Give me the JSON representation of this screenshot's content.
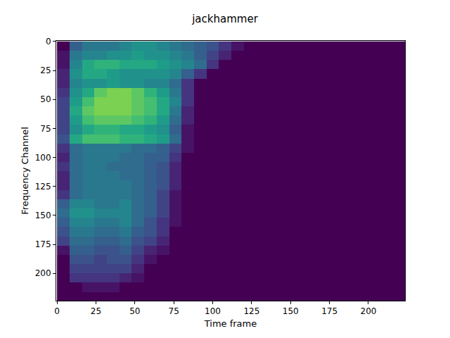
{
  "chart_data": {
    "type": "heatmap",
    "title": "jackhammer",
    "xlabel": "Time frame",
    "ylabel": "Frequency Channel",
    "color": "viridis",
    "xlim": [
      -0.5,
      223.5
    ],
    "ylim": [
      223.5,
      -0.5
    ],
    "xticks": [
      0,
      25,
      50,
      75,
      100,
      125,
      150,
      175,
      200
    ],
    "yticks": [
      0,
      25,
      50,
      75,
      100,
      125,
      150,
      175,
      200
    ],
    "zlim": [
      0,
      1
    ],
    "x": [
      4,
      12,
      20,
      28,
      36,
      44,
      52,
      60,
      68,
      76,
      84,
      92,
      100,
      108,
      116,
      124,
      132,
      140,
      148,
      156,
      164,
      172,
      180,
      188,
      196,
      204,
      212,
      220
    ],
    "y": [
      4,
      12,
      20,
      28,
      36,
      44,
      52,
      60,
      68,
      76,
      84,
      92,
      100,
      108,
      116,
      124,
      132,
      140,
      148,
      156,
      164,
      172,
      180,
      188,
      196,
      204,
      212,
      220
    ],
    "cells": [
      [
        0,
        0.3,
        0.4,
        0.4,
        0.4,
        0.45,
        0.5,
        0.5,
        0.45,
        0.4,
        0.35,
        0.3,
        0.25,
        0.15,
        0.05,
        0,
        0,
        0,
        0,
        0,
        0,
        0,
        0,
        0,
        0,
        0,
        0,
        0
      ],
      [
        0.05,
        0.4,
        0.45,
        0.45,
        0.5,
        0.5,
        0.55,
        0.5,
        0.5,
        0.45,
        0.4,
        0.3,
        0.2,
        0.1,
        0,
        0,
        0,
        0,
        0,
        0,
        0,
        0,
        0,
        0,
        0,
        0,
        0,
        0
      ],
      [
        0.05,
        0.45,
        0.6,
        0.65,
        0.65,
        0.6,
        0.6,
        0.6,
        0.55,
        0.5,
        0.45,
        0.35,
        0.15,
        0,
        0,
        0,
        0,
        0,
        0,
        0,
        0,
        0,
        0,
        0,
        0,
        0,
        0,
        0
      ],
      [
        0.1,
        0.5,
        0.6,
        0.6,
        0.55,
        0.5,
        0.5,
        0.5,
        0.5,
        0.45,
        0.3,
        0.15,
        0,
        0,
        0,
        0,
        0,
        0,
        0,
        0,
        0,
        0,
        0,
        0,
        0,
        0,
        0,
        0
      ],
      [
        0.1,
        0.45,
        0.5,
        0.5,
        0.55,
        0.5,
        0.5,
        0.45,
        0.45,
        0.35,
        0.15,
        0,
        0,
        0,
        0,
        0,
        0,
        0,
        0,
        0,
        0,
        0,
        0,
        0,
        0,
        0,
        0,
        0
      ],
      [
        0.15,
        0.5,
        0.6,
        0.75,
        0.8,
        0.8,
        0.75,
        0.65,
        0.55,
        0.4,
        0.15,
        0,
        0,
        0,
        0,
        0,
        0,
        0,
        0,
        0,
        0,
        0,
        0,
        0,
        0,
        0,
        0,
        0
      ],
      [
        0.2,
        0.55,
        0.7,
        0.8,
        0.8,
        0.8,
        0.75,
        0.7,
        0.6,
        0.45,
        0.15,
        0,
        0,
        0,
        0,
        0,
        0,
        0,
        0,
        0,
        0,
        0,
        0,
        0,
        0,
        0,
        0,
        0
      ],
      [
        0.2,
        0.6,
        0.75,
        0.8,
        0.8,
        0.8,
        0.75,
        0.7,
        0.6,
        0.4,
        0.1,
        0,
        0,
        0,
        0,
        0,
        0,
        0,
        0,
        0,
        0,
        0,
        0,
        0,
        0,
        0,
        0,
        0
      ],
      [
        0.2,
        0.55,
        0.7,
        0.75,
        0.75,
        0.75,
        0.7,
        0.65,
        0.55,
        0.35,
        0.1,
        0,
        0,
        0,
        0,
        0,
        0,
        0,
        0,
        0,
        0,
        0,
        0,
        0,
        0,
        0,
        0,
        0
      ],
      [
        0.2,
        0.5,
        0.6,
        0.65,
        0.65,
        0.6,
        0.6,
        0.55,
        0.5,
        0.3,
        0.05,
        0,
        0,
        0,
        0,
        0,
        0,
        0,
        0,
        0,
        0,
        0,
        0,
        0,
        0,
        0,
        0,
        0
      ],
      [
        0.25,
        0.6,
        0.7,
        0.7,
        0.7,
        0.65,
        0.65,
        0.6,
        0.55,
        0.35,
        0.05,
        0,
        0,
        0,
        0,
        0,
        0,
        0,
        0,
        0,
        0,
        0,
        0,
        0,
        0,
        0,
        0,
        0
      ],
      [
        0.15,
        0.35,
        0.4,
        0.4,
        0.4,
        0.4,
        0.35,
        0.35,
        0.3,
        0.2,
        0.05,
        0,
        0,
        0,
        0,
        0,
        0,
        0,
        0,
        0,
        0,
        0,
        0,
        0,
        0,
        0,
        0,
        0
      ],
      [
        0.1,
        0.35,
        0.4,
        0.4,
        0.4,
        0.35,
        0.35,
        0.3,
        0.3,
        0.15,
        0,
        0,
        0,
        0,
        0,
        0,
        0,
        0,
        0,
        0,
        0,
        0,
        0,
        0,
        0,
        0,
        0,
        0
      ],
      [
        0.15,
        0.35,
        0.4,
        0.4,
        0.35,
        0.35,
        0.35,
        0.3,
        0.25,
        0.1,
        0,
        0,
        0,
        0,
        0,
        0,
        0,
        0,
        0,
        0,
        0,
        0,
        0,
        0,
        0,
        0,
        0,
        0
      ],
      [
        0.1,
        0.35,
        0.4,
        0.4,
        0.4,
        0.35,
        0.35,
        0.3,
        0.25,
        0.1,
        0,
        0,
        0,
        0,
        0,
        0,
        0,
        0,
        0,
        0,
        0,
        0,
        0,
        0,
        0,
        0,
        0,
        0
      ],
      [
        0.1,
        0.35,
        0.4,
        0.4,
        0.4,
        0.4,
        0.35,
        0.3,
        0.25,
        0.1,
        0,
        0,
        0,
        0,
        0,
        0,
        0,
        0,
        0,
        0,
        0,
        0,
        0,
        0,
        0,
        0,
        0,
        0
      ],
      [
        0.15,
        0.35,
        0.4,
        0.4,
        0.4,
        0.4,
        0.35,
        0.3,
        0.2,
        0.05,
        0,
        0,
        0,
        0,
        0,
        0,
        0,
        0,
        0,
        0,
        0,
        0,
        0,
        0,
        0,
        0,
        0,
        0
      ],
      [
        0.3,
        0.45,
        0.45,
        0.4,
        0.4,
        0.45,
        0.35,
        0.3,
        0.2,
        0.05,
        0,
        0,
        0,
        0,
        0,
        0,
        0,
        0,
        0,
        0,
        0,
        0,
        0,
        0,
        0,
        0,
        0,
        0
      ],
      [
        0.35,
        0.5,
        0.5,
        0.45,
        0.45,
        0.45,
        0.35,
        0.3,
        0.2,
        0.05,
        0,
        0,
        0,
        0,
        0,
        0,
        0,
        0,
        0,
        0,
        0,
        0,
        0,
        0,
        0,
        0,
        0,
        0
      ],
      [
        0.3,
        0.45,
        0.45,
        0.4,
        0.4,
        0.45,
        0.35,
        0.25,
        0.15,
        0.05,
        0,
        0,
        0,
        0,
        0,
        0,
        0,
        0,
        0,
        0,
        0,
        0,
        0,
        0,
        0,
        0,
        0,
        0
      ],
      [
        0.25,
        0.4,
        0.4,
        0.35,
        0.35,
        0.4,
        0.3,
        0.25,
        0.15,
        0,
        0,
        0,
        0,
        0,
        0,
        0,
        0,
        0,
        0,
        0,
        0,
        0,
        0,
        0,
        0,
        0,
        0,
        0
      ],
      [
        0.2,
        0.35,
        0.35,
        0.3,
        0.3,
        0.35,
        0.25,
        0.2,
        0.1,
        0,
        0,
        0,
        0,
        0,
        0,
        0,
        0,
        0,
        0,
        0,
        0,
        0,
        0,
        0,
        0,
        0,
        0,
        0
      ],
      [
        0.05,
        0.3,
        0.3,
        0.25,
        0.25,
        0.3,
        0.2,
        0.1,
        0.05,
        0,
        0,
        0,
        0,
        0,
        0,
        0,
        0,
        0,
        0,
        0,
        0,
        0,
        0,
        0,
        0,
        0,
        0,
        0
      ],
      [
        0,
        0.25,
        0.25,
        0.2,
        0.25,
        0.25,
        0.15,
        0.05,
        0,
        0,
        0,
        0,
        0,
        0,
        0,
        0,
        0,
        0,
        0,
        0,
        0,
        0,
        0,
        0,
        0,
        0,
        0,
        0
      ],
      [
        0,
        0.2,
        0.2,
        0.2,
        0.2,
        0.2,
        0.1,
        0,
        0,
        0,
        0,
        0,
        0,
        0,
        0,
        0,
        0,
        0,
        0,
        0,
        0,
        0,
        0,
        0,
        0,
        0,
        0,
        0
      ],
      [
        0,
        0.15,
        0.15,
        0.15,
        0.15,
        0.1,
        0.05,
        0,
        0,
        0,
        0,
        0,
        0,
        0,
        0,
        0,
        0,
        0,
        0,
        0,
        0,
        0,
        0,
        0,
        0,
        0,
        0,
        0
      ],
      [
        0,
        0,
        0.05,
        0.05,
        0.05,
        0,
        0,
        0,
        0,
        0,
        0,
        0,
        0,
        0,
        0,
        0,
        0,
        0,
        0,
        0,
        0,
        0,
        0,
        0,
        0,
        0,
        0,
        0
      ],
      [
        0,
        0,
        0,
        0,
        0,
        0,
        0,
        0,
        0,
        0,
        0,
        0,
        0,
        0,
        0,
        0,
        0,
        0,
        0,
        0,
        0,
        0,
        0,
        0,
        0,
        0,
        0,
        0
      ]
    ]
  }
}
